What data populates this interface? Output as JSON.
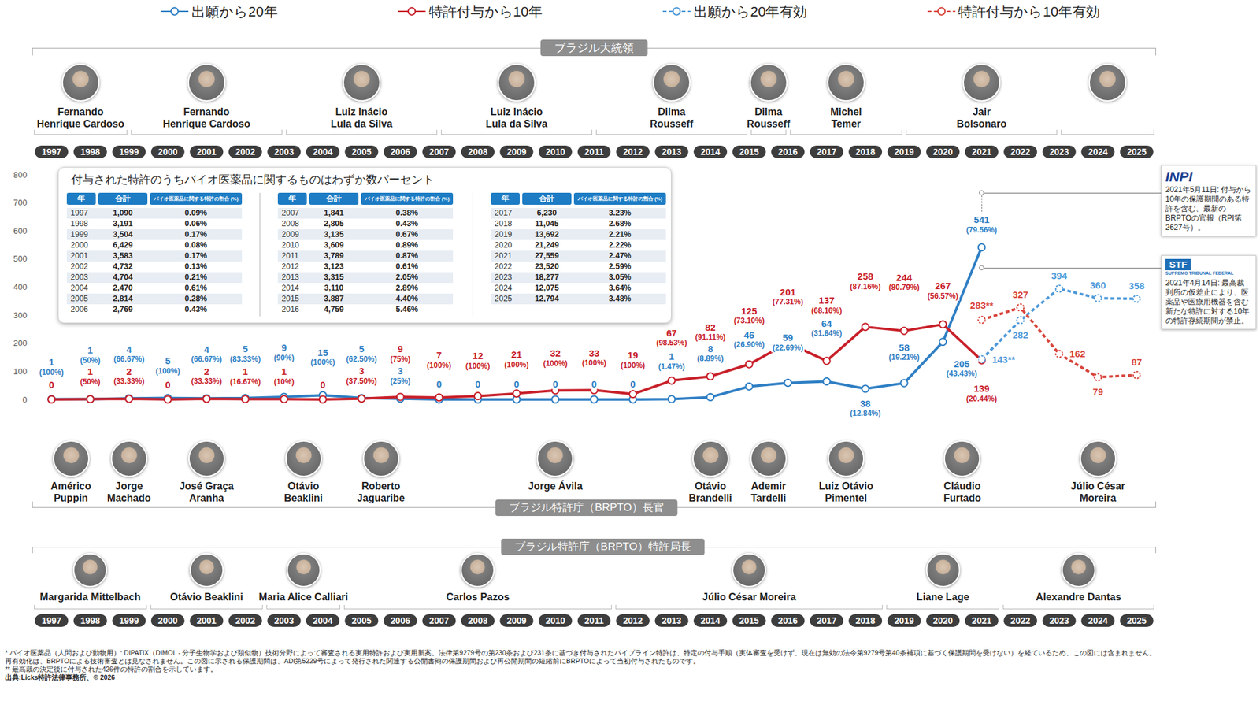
{
  "chart_data": {
    "type": "line",
    "categories": [
      "1997",
      "1998",
      "1999",
      "2000",
      "2001",
      "2002",
      "2003",
      "2004",
      "2005",
      "2006",
      "2007",
      "2008",
      "2009",
      "2010",
      "2011",
      "2012",
      "2013",
      "2014",
      "2015",
      "2016",
      "2017",
      "2018",
      "2019",
      "2020",
      "2021",
      "2022",
      "2023",
      "2024",
      "2025"
    ],
    "ylim": [
      0,
      800
    ],
    "yticks": [
      0,
      100,
      200,
      300,
      400,
      500,
      600,
      700,
      800
    ],
    "grid": false,
    "legend": "top",
    "data_labels": true,
    "series": [
      {
        "name": "出願から20年",
        "color": "#2f7fc4",
        "line_style": "solid",
        "marker": "emptyCircle",
        "values": [
          1,
          1,
          4,
          5,
          4,
          5,
          9,
          15,
          5,
          3,
          0,
          0,
          0,
          0,
          0,
          0,
          1,
          8,
          46,
          59,
          64,
          38,
          58,
          205,
          541,
          null,
          null,
          null,
          null
        ],
        "value_labels": [
          "1\n(100%)",
          "1\n(50%)",
          "4\n(66.67%)",
          "5\n(100%)",
          "4\n(66.67%)",
          "5\n(83.33%)",
          "9\n(90%)",
          "15\n(100%)",
          "5\n(62.50%)",
          "3\n(25%)",
          "0",
          "0",
          "0",
          "0",
          "0",
          "0",
          "1\n(1.47%)",
          "8\n(8.89%)",
          "46\n(26.90%)",
          "59\n(22.69%)",
          "64\n(31.84%)",
          "38\n(12.84%)",
          "58\n(19.21%)",
          "205\n(43.43%)",
          "541\n(79.56%)",
          null,
          null,
          null,
          null
        ]
      },
      {
        "name": "特許付与から10年",
        "color": "#c8202a",
        "line_style": "solid",
        "marker": "emptyCircle",
        "values": [
          0,
          1,
          2,
          0,
          2,
          1,
          1,
          0,
          3,
          9,
          7,
          12,
          21,
          32,
          33,
          19,
          67,
          82,
          125,
          201,
          137,
          258,
          244,
          267,
          139,
          null,
          null,
          null,
          null
        ],
        "value_labels": [
          "0",
          "1\n(50%)",
          "2\n(33.33%)",
          "0",
          "2\n(33.33%)",
          "1\n(16.67%)",
          "1\n(10%)",
          "0",
          "3\n(37.50%)",
          "9\n(75%)",
          "7\n(100%)",
          "12\n(100%)",
          "21\n(100%)",
          "32\n(100%)",
          "33\n(100%)",
          "19\n(100%)",
          "67\n(98.53%)",
          "82\n(91.11%)",
          "125\n(73.10%)",
          "201\n(77.31%)",
          "137\n(68.16%)",
          "258\n(87.16%)",
          "244\n(80.79%)",
          "267\n(56.57%)",
          "139\n(20.44%)",
          null,
          null,
          null,
          null
        ]
      },
      {
        "name": "出願から20年有効",
        "color": "#4f9ad9",
        "line_style": "dotted",
        "marker": "emptyCircle",
        "values": [
          null,
          null,
          null,
          null,
          null,
          null,
          null,
          null,
          null,
          null,
          null,
          null,
          null,
          null,
          null,
          null,
          null,
          null,
          null,
          null,
          null,
          null,
          null,
          null,
          143,
          282,
          394,
          360,
          358
        ],
        "value_labels": [
          null,
          null,
          null,
          null,
          null,
          null,
          null,
          null,
          null,
          null,
          null,
          null,
          null,
          null,
          null,
          null,
          null,
          null,
          null,
          null,
          null,
          null,
          null,
          null,
          "143**",
          "282",
          "394",
          "360",
          "358"
        ]
      },
      {
        "name": "特許付与から10年有効",
        "color": "#d8453c",
        "line_style": "dotted",
        "marker": "emptyCircle",
        "values": [
          null,
          null,
          null,
          null,
          null,
          null,
          null,
          null,
          null,
          null,
          null,
          null,
          null,
          null,
          null,
          null,
          null,
          null,
          null,
          null,
          null,
          null,
          null,
          null,
          283,
          327,
          162,
          79,
          87
        ],
        "value_labels": [
          null,
          null,
          null,
          null,
          null,
          null,
          null,
          null,
          null,
          null,
          null,
          null,
          null,
          null,
          null,
          null,
          null,
          null,
          null,
          null,
          null,
          null,
          null,
          null,
          "283**",
          "327",
          "162",
          "79",
          "87"
        ]
      }
    ]
  },
  "presidents": {
    "title": "ブラジル大統領",
    "people": [
      {
        "lines": [
          "Fernando",
          "Henrique Cardoso"
        ],
        "from": "1997",
        "to": "1998"
      },
      {
        "lines": [
          "Fernando",
          "Henrique Cardoso"
        ],
        "from": "1999",
        "to": "2002"
      },
      {
        "lines": [
          "Luiz Inácio",
          "Lula da Silva"
        ],
        "from": "2003",
        "to": "2006"
      },
      {
        "lines": [
          "Luiz Inácio",
          "Lula da Silva"
        ],
        "from": "2007",
        "to": "2010"
      },
      {
        "lines": [
          "Dilma",
          "Rousseff"
        ],
        "from": "2011",
        "to": "2014"
      },
      {
        "lines": [
          "Dilma",
          "Rousseff"
        ],
        "from": "2015",
        "to": "2015"
      },
      {
        "lines": [
          "Michel",
          "Temer"
        ],
        "from": "2016",
        "to": "2018"
      },
      {
        "lines": [
          "Jair",
          "Bolsonaro"
        ],
        "from": "2019",
        "to": "2022"
      },
      {
        "from": "2023",
        "to": "2025"
      }
    ]
  },
  "brpto_heads": {
    "title": "ブラジル特許庁（BRPTO）長官",
    "people": [
      {
        "lines": [
          "Américo",
          "Puppin"
        ],
        "from": "1997",
        "to": "1998"
      },
      {
        "lines": [
          "Jorge",
          "Machado"
        ],
        "from": "1999",
        "to": "1999"
      },
      {
        "lines": [
          "José Graça",
          "Aranha"
        ],
        "from": "2000",
        "to": "2002"
      },
      {
        "lines": [
          "Otávio",
          "Beaklini"
        ],
        "from": "2003",
        "to": "2004"
      },
      {
        "lines": [
          "Roberto",
          "Jaguaribe"
        ],
        "from": "2005",
        "to": "2006"
      },
      {
        "lines": [
          "Jorge Ávila"
        ],
        "from": "2007",
        "to": "2013"
      },
      {
        "lines": [
          "Otávio",
          "Brandelli"
        ],
        "from": "2014",
        "to": "2014"
      },
      {
        "lines": [
          "Ademir",
          "Tardelli"
        ],
        "from": "2015",
        "to": "2016"
      },
      {
        "lines": [
          "Luiz Otávio",
          "Pimentel"
        ],
        "from": "2017",
        "to": "2018"
      },
      {
        "lines": [
          "Cláudio",
          "Furtado"
        ],
        "from": "2019",
        "to": "2022"
      },
      {
        "lines": [
          "Júlio César",
          "Moreira"
        ],
        "from": "2023",
        "to": "2025"
      }
    ]
  },
  "patent_directors": {
    "title": "ブラジル特許庁（BRPTO）特許局長",
    "people": [
      {
        "lines": [
          "Margarida Mittelbach"
        ],
        "from": "1997",
        "to": "1999"
      },
      {
        "lines": [
          "Otávio Beaklini"
        ],
        "from": "2000",
        "to": "2002"
      },
      {
        "lines": [
          "Maria Alice Calliari"
        ],
        "from": "2003",
        "to": "2004"
      },
      {
        "lines": [
          "Carlos Pazos"
        ],
        "from": "2005",
        "to": "2011"
      },
      {
        "lines": [
          "Júlio César Moreira"
        ],
        "from": "2012",
        "to": "2018"
      },
      {
        "lines": [
          "Liane Lage"
        ],
        "from": "2019",
        "to": "2021"
      },
      {
        "lines": [
          "Alexandre Dantas"
        ],
        "from": "2022",
        "to": "2025"
      }
    ]
  },
  "table": {
    "title": "付与された特許のうちバイオ医薬品に関するものはわずか数パーセント",
    "columns": [
      "年",
      "合計",
      "バイオ医薬品に関する特許の割合 (%)"
    ],
    "rows": [
      [
        "1997",
        "1,090",
        "0.09%"
      ],
      [
        "1998",
        "3,191",
        "0.06%"
      ],
      [
        "1999",
        "3,504",
        "0.17%"
      ],
      [
        "2000",
        "6,429",
        "0.08%"
      ],
      [
        "2001",
        "3,583",
        "0.17%"
      ],
      [
        "2002",
        "4,732",
        "0.13%"
      ],
      [
        "2003",
        "4,704",
        "0.21%"
      ],
      [
        "2004",
        "2,470",
        "0.61%"
      ],
      [
        "2005",
        "2,814",
        "0.28%"
      ],
      [
        "2006",
        "2,769",
        "0.43%"
      ],
      [
        "2007",
        "1,841",
        "0.38%"
      ],
      [
        "2008",
        "2,805",
        "0.43%"
      ],
      [
        "2009",
        "3,135",
        "0.67%"
      ],
      [
        "2010",
        "3,609",
        "0.89%"
      ],
      [
        "2011",
        "3,789",
        "0.87%"
      ],
      [
        "2012",
        "3,123",
        "0.61%"
      ],
      [
        "2013",
        "3,315",
        "2.05%"
      ],
      [
        "2014",
        "3,110",
        "2.89%"
      ],
      [
        "2015",
        "3,887",
        "4.40%"
      ],
      [
        "2016",
        "4,759",
        "5.46%"
      ],
      [
        "2017",
        "6,230",
        "3.23%"
      ],
      [
        "2018",
        "11,045",
        "2.68%"
      ],
      [
        "2019",
        "13,692",
        "2.21%"
      ],
      [
        "2020",
        "21,249",
        "2.22%"
      ],
      [
        "2021",
        "27,559",
        "2.47%"
      ],
      [
        "2022",
        "23,520",
        "2.59%"
      ],
      [
        "2023",
        "18,277",
        "3.05%"
      ],
      [
        "2024",
        "12,075",
        "3.64%"
      ],
      [
        "2025",
        "12,794",
        "3.48%"
      ]
    ]
  },
  "annotations": [
    {
      "logo": "INPI",
      "year": "2021",
      "text": "2021年5月11日: 付与から10年の保護期間のある特許を含む、最新のBRPTOの官報（RPI第2627号）。"
    },
    {
      "logo": "STF",
      "logo_subtitle": "SUPREMO TRIBUNAL FEDERAL",
      "year": "2021",
      "text": "2021年4月14日: 最高裁判所の仮差止により、医薬品や医療用機器を含む新たな特許に対する10年の特許存続期間が禁止。"
    }
  ],
  "footnotes": [
    "* バイオ医薬品（人間および動物用）: DIPATIX（DIMOL - 分子生物学および類似物）技術分野によって審査される実用特許および実用新案。法律第9279号の第230条および231条に基づき付与されたパイプライン特許は、特定の付与手順（実体審査を受けず、現在は無効の法令第9279号第40条補項に基づく保護期間を受けない）を経ているため、この図には含まれません。",
    "再有効化は、BRPTOによる技術審査とは見なされません。この図に示される保護期間は、ADI第5229号によって発行された関連する公開書簡の保護期間および再公開期間の短縮前にBRPTOによって当初付与されたものです。",
    "** 最高裁の決定後に付与された426件の特許の割合を示しています。",
    "出典:Licks特許法律事務所、© 2026"
  ]
}
